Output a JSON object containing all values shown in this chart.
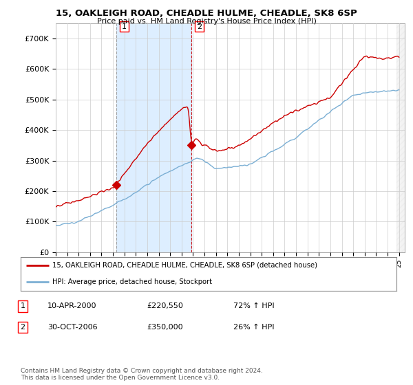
{
  "title1": "15, OAKLEIGH ROAD, CHEADLE HULME, CHEADLE, SK8 6SP",
  "title2": "Price paid vs. HM Land Registry's House Price Index (HPI)",
  "ylim": [
    0,
    750000
  ],
  "yticks": [
    0,
    100000,
    200000,
    300000,
    400000,
    500000,
    600000,
    700000
  ],
  "ytick_labels": [
    "£0",
    "£100K",
    "£200K",
    "£300K",
    "£400K",
    "£500K",
    "£600K",
    "£700K"
  ],
  "sale1_date": 2000.27,
  "sale1_price": 220550,
  "sale1_label": "1",
  "sale2_date": 2006.83,
  "sale2_price": 350000,
  "sale2_label": "2",
  "legend_line1": "15, OAKLEIGH ROAD, CHEADLE HULME, CHEADLE, SK8 6SP (detached house)",
  "legend_line2": "HPI: Average price, detached house, Stockport",
  "table_rows": [
    {
      "num": "1",
      "date": "10-APR-2000",
      "price": "£220,550",
      "change": "72% ↑ HPI"
    },
    {
      "num": "2",
      "date": "30-OCT-2006",
      "price": "£350,000",
      "change": "26% ↑ HPI"
    }
  ],
  "footnote": "Contains HM Land Registry data © Crown copyright and database right 2024.\nThis data is licensed under the Open Government Licence v3.0.",
  "hpi_color": "#7bafd4",
  "price_color": "#cc0000",
  "vline1_color": "#aaaaaa",
  "vline2_color": "#cc0000",
  "shade_color": "#ddeeff",
  "background_color": "#ffffff",
  "grid_color": "#cccccc"
}
